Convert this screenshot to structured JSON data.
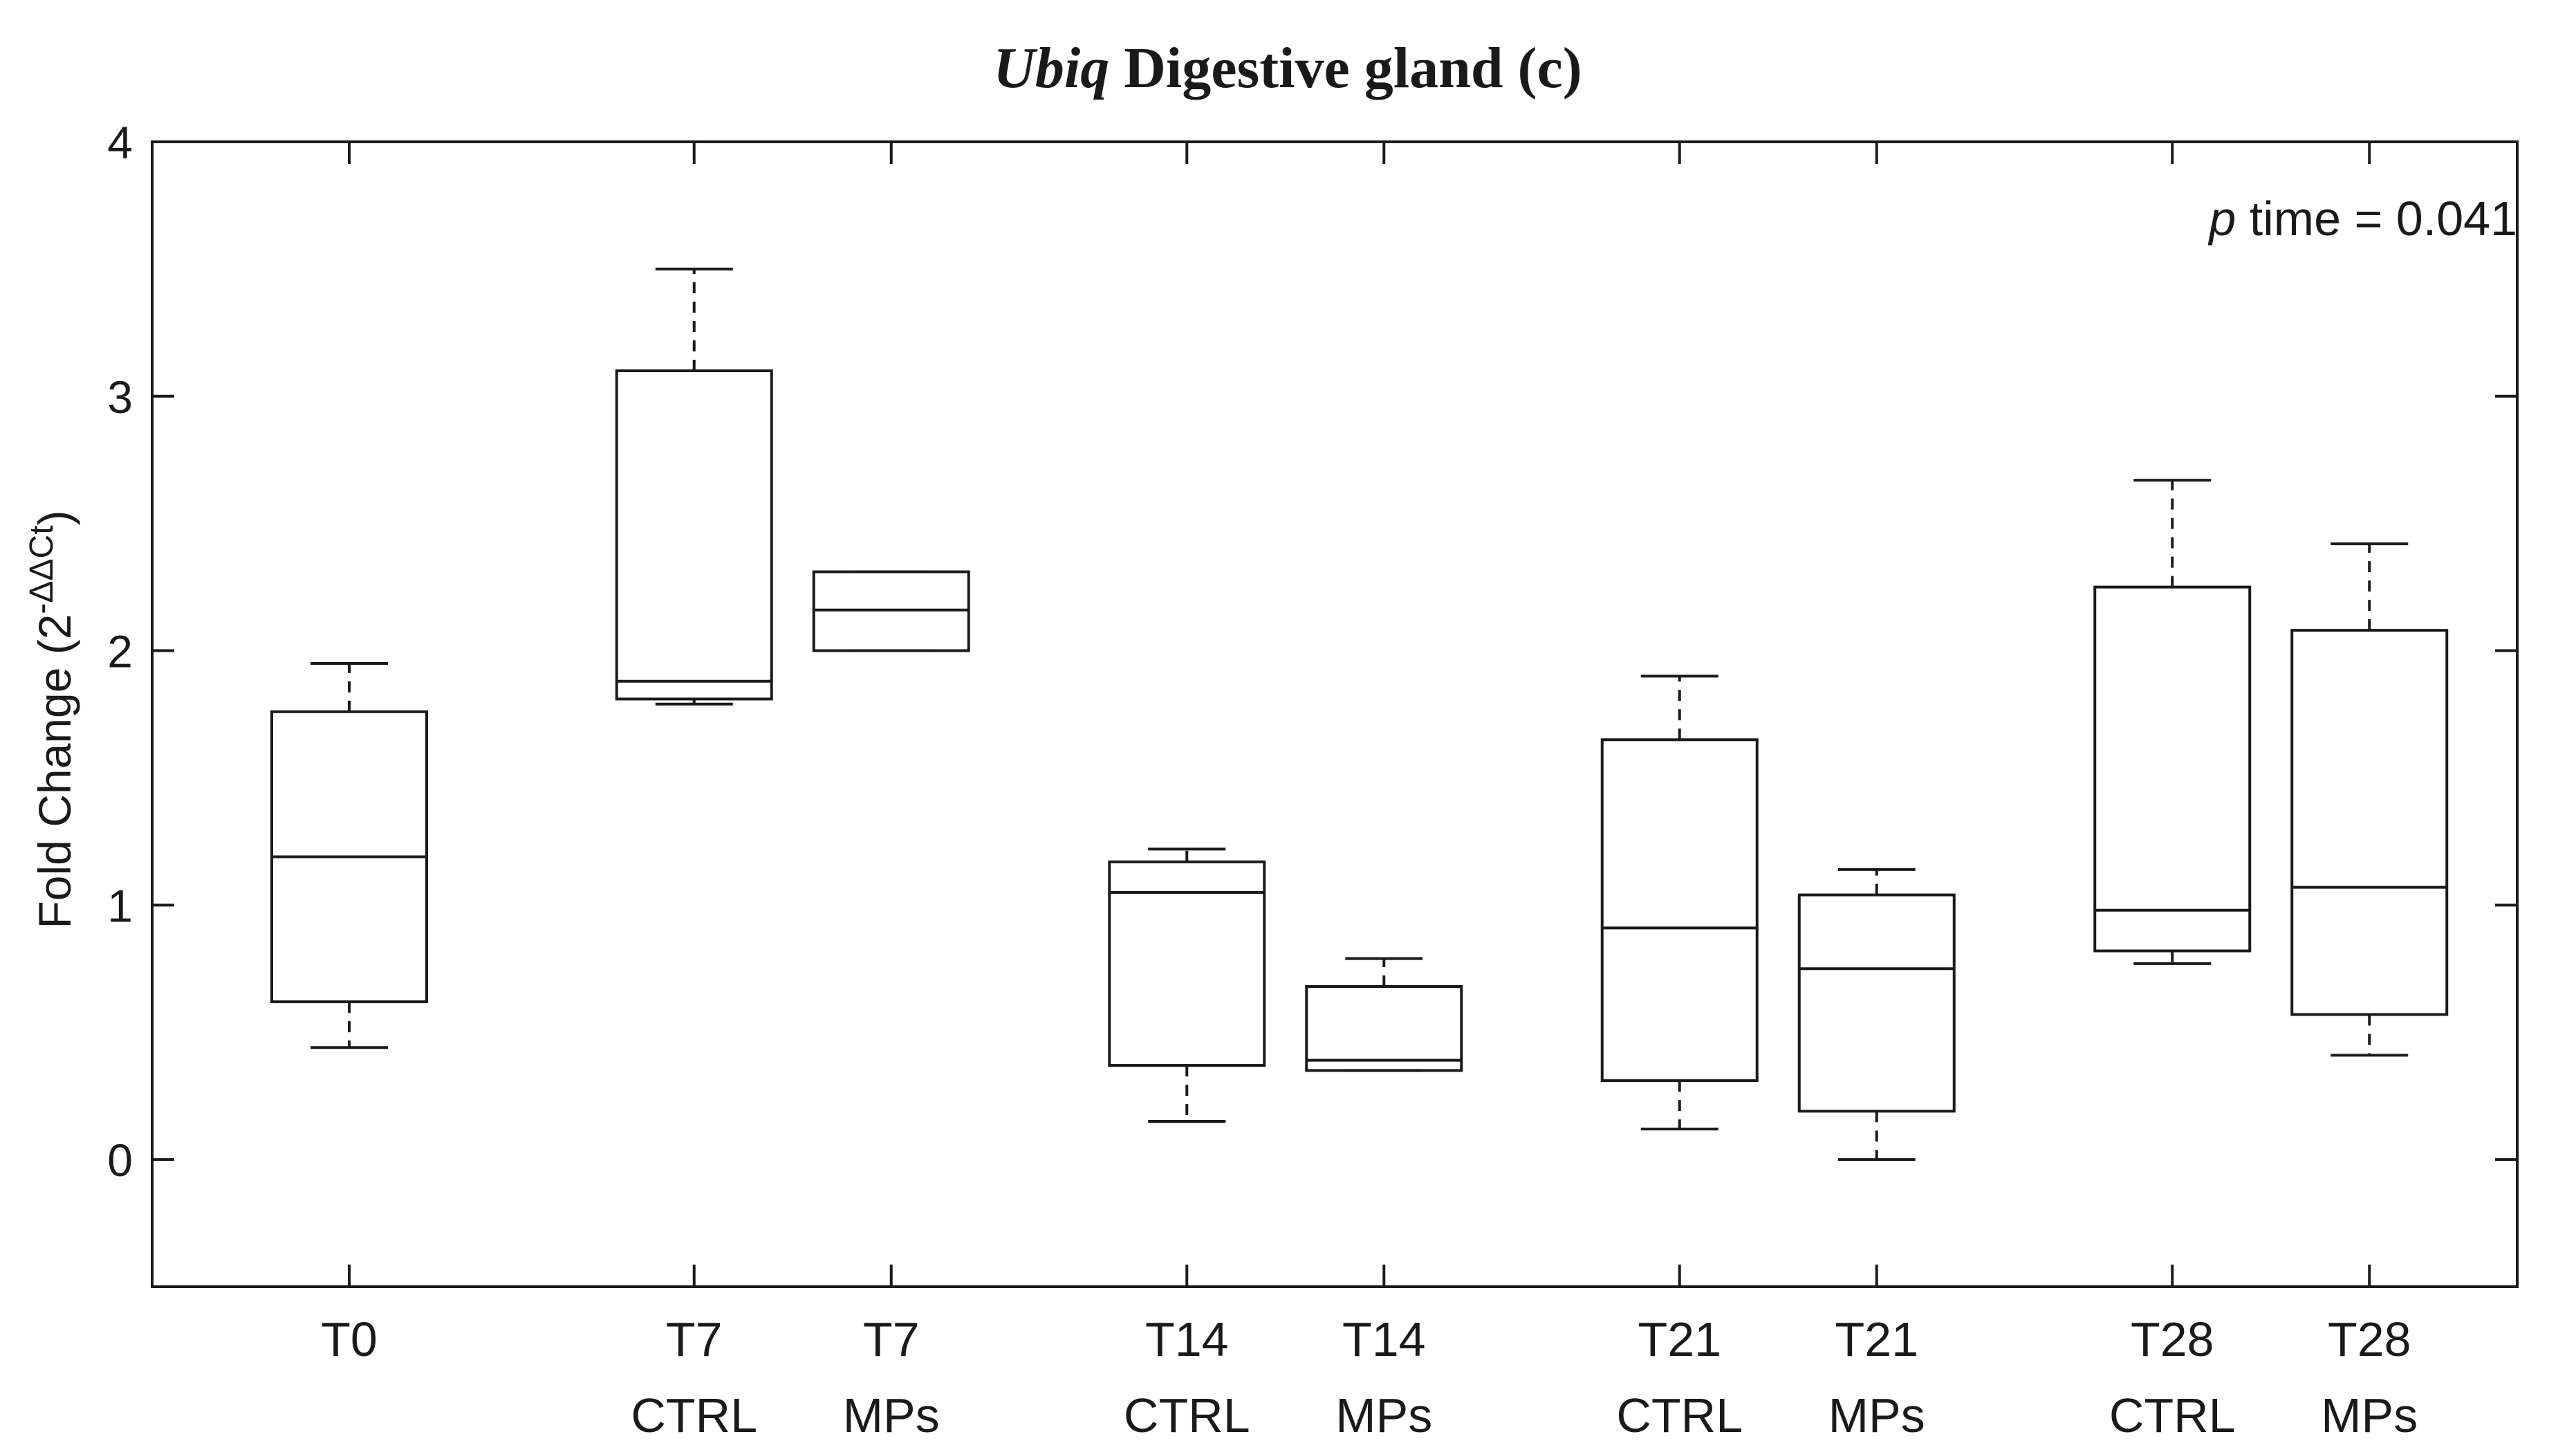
{
  "chart_data": {
    "type": "box",
    "title": {
      "gene": "Ubiq",
      "rest": " Digestive gland (c)"
    },
    "ylabel": {
      "main": "Fold Change (2",
      "superscript": "-ΔΔCt",
      "close": ")"
    },
    "xlabel": "",
    "ylim": [
      -0.5,
      4
    ],
    "yticks": [
      0,
      1,
      2,
      3,
      4
    ],
    "ytick_labels": [
      "0",
      "1",
      "2",
      "3",
      "4"
    ],
    "annotation": {
      "italic": "p",
      "rest": " time = 0.041"
    },
    "groups": [
      {
        "line1": "T0",
        "line2": "",
        "position": 1,
        "lower_whisker": 0.44,
        "q1": 0.62,
        "median": 1.19,
        "q3": 1.76,
        "upper_whisker": 1.95
      },
      {
        "line1": "T7",
        "line2": "CTRL",
        "position": 2.75,
        "lower_whisker": 1.79,
        "q1": 1.81,
        "median": 1.88,
        "q3": 3.1,
        "upper_whisker": 3.5
      },
      {
        "line1": "T7",
        "line2": "MPs",
        "position": 3.75,
        "lower_whisker": 2.0,
        "q1": 2.0,
        "median": 2.16,
        "q3": 2.31,
        "upper_whisker": 2.31
      },
      {
        "line1": "T14",
        "line2": "CTRL",
        "position": 5.25,
        "lower_whisker": 0.15,
        "q1": 0.37,
        "median": 1.05,
        "q3": 1.17,
        "upper_whisker": 1.22
      },
      {
        "line1": "T14",
        "line2": "MPs",
        "position": 6.25,
        "lower_whisker": 0.35,
        "q1": 0.35,
        "median": 0.39,
        "q3": 0.68,
        "upper_whisker": 0.79
      },
      {
        "line1": "T21",
        "line2": "CTRL",
        "position": 7.75,
        "lower_whisker": 0.12,
        "q1": 0.31,
        "median": 0.91,
        "q3": 1.65,
        "upper_whisker": 1.9
      },
      {
        "line1": "T21",
        "line2": "MPs",
        "position": 8.75,
        "lower_whisker": 0.0,
        "q1": 0.19,
        "median": 0.75,
        "q3": 1.04,
        "upper_whisker": 1.14
      },
      {
        "line1": "T28",
        "line2": "CTRL",
        "position": 10.25,
        "lower_whisker": 0.77,
        "q1": 0.82,
        "median": 0.98,
        "q3": 2.25,
        "upper_whisker": 2.67
      },
      {
        "line1": "T28",
        "line2": "MPs",
        "position": 11.25,
        "lower_whisker": 0.41,
        "q1": 0.57,
        "median": 1.07,
        "q3": 2.08,
        "upper_whisker": 2.42
      }
    ],
    "colors": {
      "stroke": "#1a1a1a",
      "text": "#1a1a1a",
      "background": "#ffffff"
    }
  }
}
